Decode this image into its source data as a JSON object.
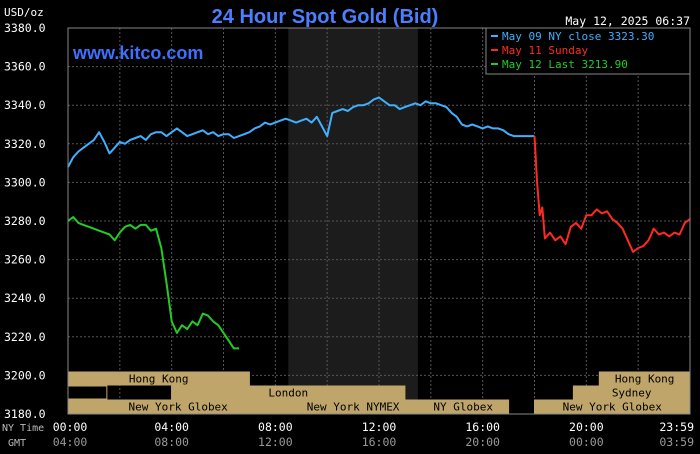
{
  "chart_data": {
    "type": "line",
    "title": "24 Hour Spot Gold (Bid)",
    "watermark": "www.kitco.com",
    "timestamp": "May 12, 2025 06:37",
    "ylabel": "USD/oz",
    "ylim": [
      3180,
      3380
    ],
    "y_ticks": [
      "3180.0",
      "3200.0",
      "3220.0",
      "3240.0",
      "3260.0",
      "3280.0",
      "3300.0",
      "3320.0",
      "3340.0",
      "3360.0",
      "3380.0"
    ],
    "xlim": [
      0,
      24
    ],
    "x_ticks_ny": [
      "00:00",
      "04:00",
      "08:00",
      "12:00",
      "16:00",
      "20:00",
      "23:59"
    ],
    "x_ticks_gmt": [
      "04:00",
      "08:00",
      "12:00",
      "16:00",
      "20:00",
      "00:00",
      "03:59"
    ],
    "time_row_labels": [
      "NY Time",
      "GMT"
    ],
    "grid": true,
    "legend_position": "top-right",
    "colors": {
      "background": "#000000",
      "plot_background": "#000000",
      "shaded_region": "#1c1c1c",
      "grid": "#555555",
      "axis_text": "#ffffff",
      "title": "#4a7fff",
      "legend_bg": "#000000",
      "legend_border": "#888888",
      "session_bg": "#bfa56a",
      "session_text": "#000000"
    },
    "shaded_hours": [
      8.5,
      13.5
    ],
    "series": [
      {
        "name": "May 09 NY close 3323.30",
        "color": "#3fb0ff",
        "x": [
          0.0,
          0.2,
          0.4,
          0.6,
          0.8,
          1.0,
          1.2,
          1.4,
          1.6,
          1.8,
          2.0,
          2.2,
          2.4,
          2.6,
          2.8,
          3.0,
          3.2,
          3.4,
          3.6,
          3.8,
          4.0,
          4.2,
          4.4,
          4.6,
          4.8,
          5.0,
          5.2,
          5.4,
          5.6,
          5.8,
          6.0,
          6.2,
          6.4,
          6.6,
          6.8,
          7.0,
          7.2,
          7.4,
          7.6,
          7.8,
          8.0,
          8.2,
          8.4,
          8.6,
          8.8,
          9.0,
          9.2,
          9.4,
          9.6,
          9.8,
          10.0,
          10.2,
          10.4,
          10.6,
          10.8,
          11.0,
          11.2,
          11.4,
          11.6,
          11.8,
          12.0,
          12.2,
          12.4,
          12.6,
          12.8,
          13.0,
          13.2,
          13.4,
          13.6,
          13.8,
          14.0,
          14.2,
          14.4,
          14.6,
          14.8,
          15.0,
          15.2,
          15.4,
          15.6,
          15.8,
          16.0,
          16.2,
          16.4,
          16.6,
          16.8,
          17.0,
          17.2,
          17.4,
          17.6,
          17.8,
          18.0
        ],
        "y": [
          3308,
          3313,
          3316,
          3318,
          3320,
          3322,
          3326,
          3321,
          3315,
          3318,
          3321,
          3320,
          3322,
          3323,
          3324,
          3322,
          3325,
          3326,
          3326,
          3324,
          3326,
          3328,
          3326,
          3324,
          3325,
          3326,
          3327,
          3325,
          3326,
          3324,
          3325,
          3325,
          3323,
          3324,
          3325,
          3326,
          3328,
          3329,
          3331,
          3330,
          3331,
          3332,
          3333,
          3332,
          3331,
          3332,
          3333,
          3331,
          3334,
          3329,
          3324,
          3336,
          3337,
          3338,
          3337,
          3339,
          3340,
          3340,
          3341,
          3343,
          3344,
          3342,
          3340,
          3340,
          3338,
          3339,
          3340,
          3341,
          3340,
          3342,
          3341,
          3341,
          3340,
          3339,
          3336,
          3334,
          3330,
          3329,
          3330,
          3329,
          3328,
          3329,
          3328,
          3328,
          3327,
          3325,
          3324,
          3324,
          3324,
          3324,
          3324
        ]
      },
      {
        "name": "May 11 Sunday",
        "color": "#ff2a1f",
        "x": [
          18.0,
          18.1,
          18.2,
          18.3,
          18.4,
          18.6,
          18.8,
          19.0,
          19.2,
          19.4,
          19.6,
          19.8,
          20.0,
          20.2,
          20.4,
          20.6,
          20.8,
          21.0,
          21.2,
          21.4,
          21.6,
          21.8,
          22.0,
          22.2,
          22.4,
          22.6,
          22.8,
          23.0,
          23.2,
          23.4,
          23.6,
          23.8,
          24.0
        ],
        "y": [
          3324,
          3300,
          3283,
          3287,
          3271,
          3274,
          3270,
          3272,
          3268,
          3277,
          3279,
          3276,
          3283,
          3283,
          3286,
          3284,
          3285,
          3281,
          3279,
          3276,
          3270,
          3264,
          3266,
          3267,
          3270,
          3276,
          3273,
          3274,
          3272,
          3274,
          3273,
          3279,
          3281
        ]
      },
      {
        "name": "May 12 Last 3213.90",
        "color": "#22cc22",
        "x": [
          0.0,
          0.2,
          0.4,
          0.6,
          0.8,
          1.0,
          1.2,
          1.4,
          1.6,
          1.8,
          2.0,
          2.2,
          2.4,
          2.6,
          2.8,
          3.0,
          3.2,
          3.4,
          3.6,
          3.8,
          4.0,
          4.2,
          4.4,
          4.6,
          4.8,
          5.0,
          5.2,
          5.4,
          5.6,
          5.8,
          6.0,
          6.2,
          6.4,
          6.6
        ],
        "y": [
          3280,
          3282,
          3279,
          3278,
          3277,
          3276,
          3275,
          3274,
          3273,
          3270,
          3274,
          3277,
          3278,
          3276,
          3278,
          3278,
          3275,
          3276,
          3266,
          3248,
          3228,
          3222,
          3226,
          3224,
          3228,
          3226,
          3232,
          3231,
          3228,
          3226,
          3222,
          3218,
          3214,
          3214
        ]
      }
    ],
    "sessions": [
      {
        "label": "Hong Kong",
        "row": 0,
        "start": 0,
        "end": 7.0
      },
      {
        "label": "Hong Kong",
        "row": 0,
        "start": 20.5,
        "end": 24
      },
      {
        "label": "",
        "row": 1,
        "start": 0,
        "end": 1.5
      },
      {
        "label": "",
        "row": 1,
        "start": 4.0,
        "end": 6.5
      },
      {
        "label": "London",
        "row": 1,
        "start": 4.0,
        "end": 13.0
      },
      {
        "label": "Sydney",
        "row": 1,
        "start": 19.5,
        "end": 24
      },
      {
        "label": "New York Globex",
        "row": 2,
        "start": 0,
        "end": 8.5
      },
      {
        "label": "New York NYMEX",
        "row": 2,
        "start": 8.5,
        "end": 13.5
      },
      {
        "label": "NY Globex",
        "row": 2,
        "start": 13.5,
        "end": 17.0
      },
      {
        "label": "New York Globex",
        "row": 2,
        "start": 18.0,
        "end": 24
      }
    ]
  }
}
